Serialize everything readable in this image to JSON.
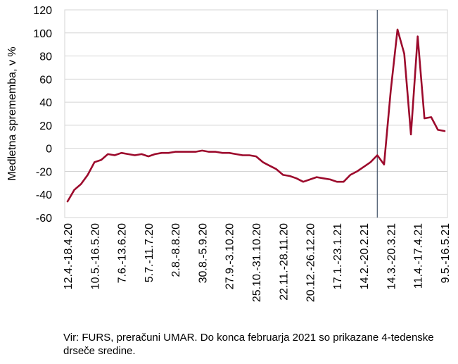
{
  "chart_data": {
    "type": "line",
    "ylabel": "Medletna sprememba, v %",
    "ylim": [
      -60,
      120
    ],
    "yticks": [
      -60,
      -40,
      -20,
      0,
      20,
      40,
      60,
      80,
      100,
      120
    ],
    "grid": true,
    "x_labels": [
      "12.4.-18.4.20",
      "10.5.-16.5.20",
      "7.6.-13.6.20",
      "5.7.-11.7.20",
      "2.8.-8.8.20",
      "30.8.-5.9.20",
      "27.9.-3.10.20",
      "25.10.-31.10.20",
      "22.11.-28.11.20",
      "20.12.-26.12.20",
      "17.1.-23.1.21",
      "14.2.-20.2.21",
      "14.3.-20.3.21",
      "11.4.-17.4.21",
      "9.5.-16.5.21"
    ],
    "x_label_week_index": [
      0,
      4,
      8,
      12,
      16,
      20,
      24,
      28,
      32,
      36,
      40,
      44,
      48,
      52,
      56
    ],
    "vertical_marker_week_index": 46,
    "series": [
      {
        "color": "#9c0a2c",
        "values": [
          -46,
          -36,
          -31,
          -23,
          -12,
          -10,
          -5,
          -6,
          -4,
          -5,
          -6,
          -5,
          -7,
          -5,
          -4,
          -4,
          -3,
          -3,
          -3,
          -3,
          -2,
          -3,
          -3,
          -4,
          -4,
          -5,
          -6,
          -6,
          -7,
          -12,
          -15,
          -18,
          -23,
          -24,
          -26,
          -29,
          -27,
          -25,
          -26,
          -27,
          -29,
          -29,
          -23,
          -20,
          -16,
          -12,
          -6,
          -14,
          50,
          103,
          82,
          12,
          97,
          26,
          27,
          16,
          15
        ]
      }
    ]
  },
  "source_note": "Vir: FURS, preračuni UMAR. Do konca februarja 2021 so prikazane 4-tedenske drseče sredine."
}
